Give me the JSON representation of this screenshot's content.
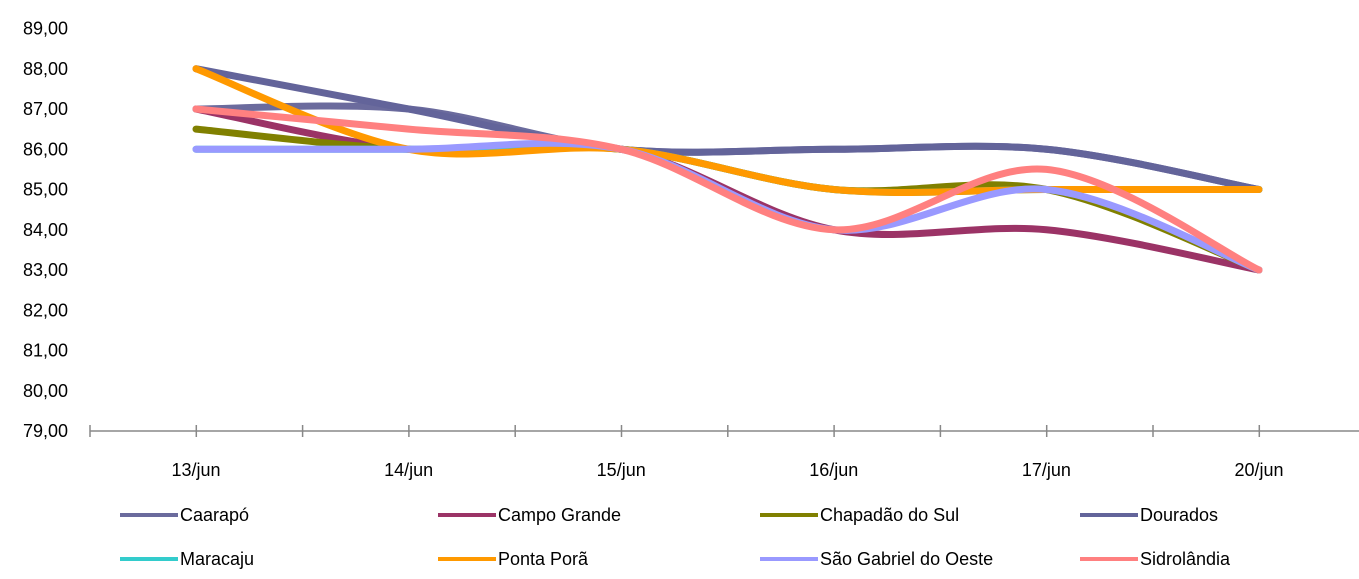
{
  "chart_data": {
    "type": "line",
    "categories": [
      "13/jun",
      "14/jun",
      "15/jun",
      "16/jun",
      "17/jun",
      "20/jun"
    ],
    "ylim": [
      79,
      89
    ],
    "yticks": [
      "79,00",
      "80,00",
      "81,00",
      "82,00",
      "83,00",
      "84,00",
      "85,00",
      "86,00",
      "87,00",
      "88,00",
      "89,00"
    ],
    "grid": false,
    "legend_position": "bottom",
    "series": [
      {
        "name": "Caarapó",
        "color": "#6b6b9d",
        "values": [
          87,
          87,
          86,
          86,
          86,
          85
        ]
      },
      {
        "name": "Campo Grande",
        "color": "#9b3366",
        "values": [
          87,
          86,
          86,
          84,
          84,
          83
        ]
      },
      {
        "name": "Chapadão do Sul",
        "color": "#808000",
        "values": [
          86.5,
          86,
          86,
          85,
          85,
          83
        ]
      },
      {
        "name": "Dourados",
        "color": "#63649a",
        "values": [
          88,
          87,
          86,
          86,
          86,
          85
        ]
      },
      {
        "name": "Maracaju",
        "color": "#33cccc",
        "values": [
          86,
          86,
          86,
          85,
          85,
          85
        ]
      },
      {
        "name": "Ponta Porã",
        "color": "#ff9900",
        "values": [
          88,
          86,
          86,
          85,
          85,
          85
        ]
      },
      {
        "name": "São Gabriel do Oeste",
        "color": "#9999ff",
        "values": [
          86,
          86,
          86,
          84,
          85,
          83
        ]
      },
      {
        "name": "Sidrolândia",
        "color": "#ff8080",
        "values": [
          87,
          86.5,
          86,
          84,
          85.5,
          83
        ]
      }
    ]
  }
}
